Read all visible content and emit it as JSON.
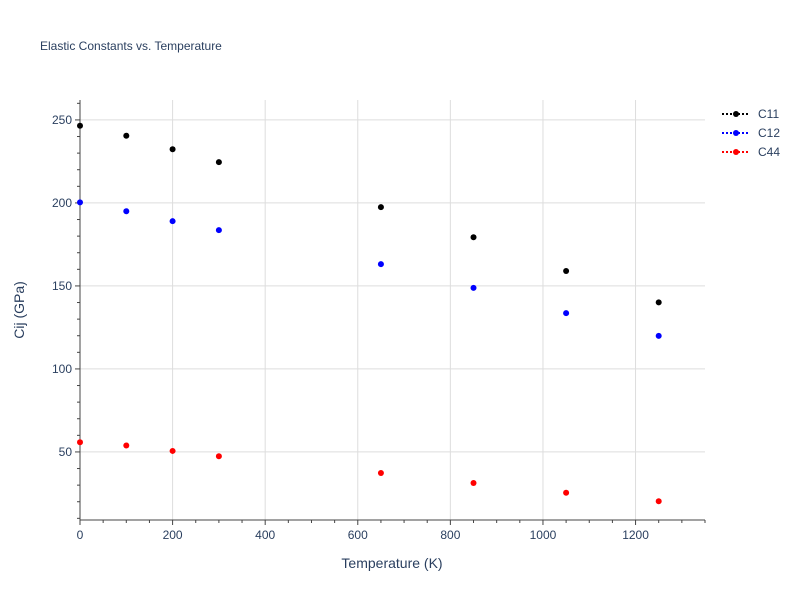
{
  "chart_data": {
    "type": "scatter",
    "title": "Elastic Constants vs. Temperature",
    "xlabel": "Temperature (K)",
    "ylabel": "Cij (GPa)",
    "xlim": [
      0,
      1350
    ],
    "ylim": [
      9,
      262
    ],
    "xticks": [
      0,
      200,
      400,
      600,
      800,
      1000,
      1200
    ],
    "yticks": [
      50,
      100,
      150,
      200,
      250
    ],
    "grid": true,
    "legend_position": "top-right",
    "x": [
      0,
      100,
      200,
      300,
      650,
      850,
      1050,
      1250
    ],
    "series": [
      {
        "name": "C11",
        "color": "#000000",
        "values": [
          246.5,
          240.5,
          232.3,
          224.6,
          197.5,
          179.3,
          159.0,
          140.1
        ]
      },
      {
        "name": "C12",
        "color": "#0000ff",
        "values": [
          200.3,
          195.0,
          189.0,
          183.6,
          163.1,
          148.8,
          133.6,
          119.9
        ]
      },
      {
        "name": "C44",
        "color": "#ff0000",
        "values": [
          55.8,
          53.9,
          50.6,
          47.4,
          37.3,
          31.3,
          25.4,
          20.3
        ]
      }
    ]
  }
}
